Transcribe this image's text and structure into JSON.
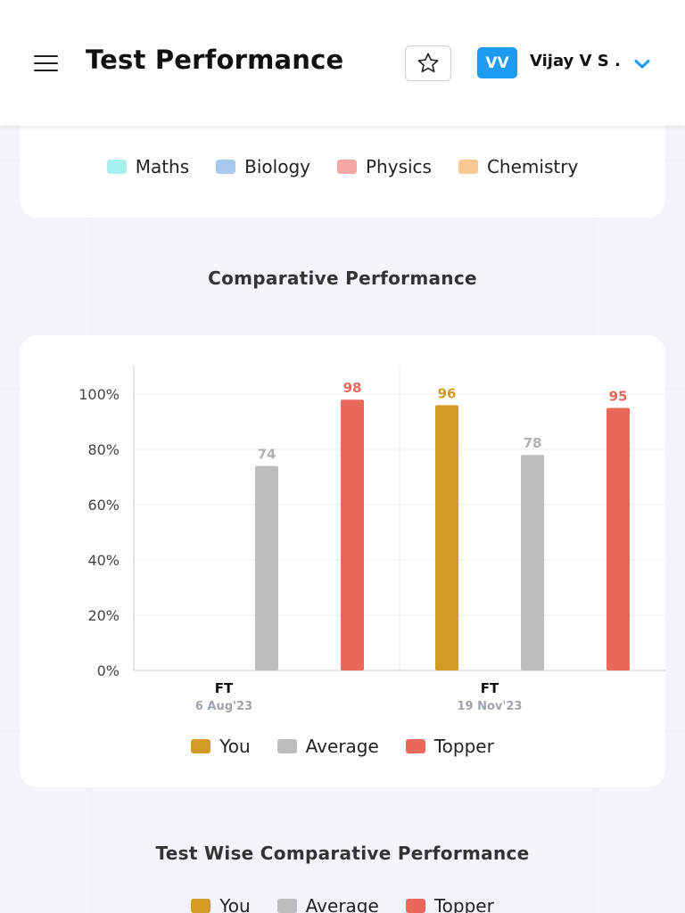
{
  "header": {
    "title": "Test Performance",
    "user_initials": "VV",
    "user_name": "Vijay V S ."
  },
  "subjects_legend": [
    {
      "label": "Maths",
      "color": "#a8efef"
    },
    {
      "label": "Biology",
      "color": "#a9c9ef"
    },
    {
      "label": "Physics",
      "color": "#f5a6a6"
    },
    {
      "label": "Chemistry",
      "color": "#fbc894"
    }
  ],
  "comparative": {
    "title": "Comparative Performance"
  },
  "chart_data": {
    "type": "bar",
    "categories": [
      "FT",
      "FT"
    ],
    "category_dates": [
      "6 Aug'23",
      "19 Nov'23"
    ],
    "series": [
      {
        "name": "You",
        "color": "#d39a26",
        "values": [
          null,
          96
        ]
      },
      {
        "name": "Average",
        "color": "#bdbdbd",
        "values": [
          74,
          78
        ]
      },
      {
        "name": "Topper",
        "color": "#e8695c",
        "values": [
          98,
          95
        ]
      }
    ],
    "yticks": [
      "0%",
      "20%",
      "40%",
      "60%",
      "80%",
      "100%"
    ],
    "ylim": [
      0,
      100
    ],
    "grid": true,
    "legend_placement": "bottom"
  },
  "test_wise": {
    "title": "Test Wise Comparative Performance",
    "legend": [
      {
        "label": "You",
        "color": "#d39a26"
      },
      {
        "label": "Average",
        "color": "#bdbdbd"
      },
      {
        "label": "Topper",
        "color": "#e8695c"
      }
    ]
  }
}
